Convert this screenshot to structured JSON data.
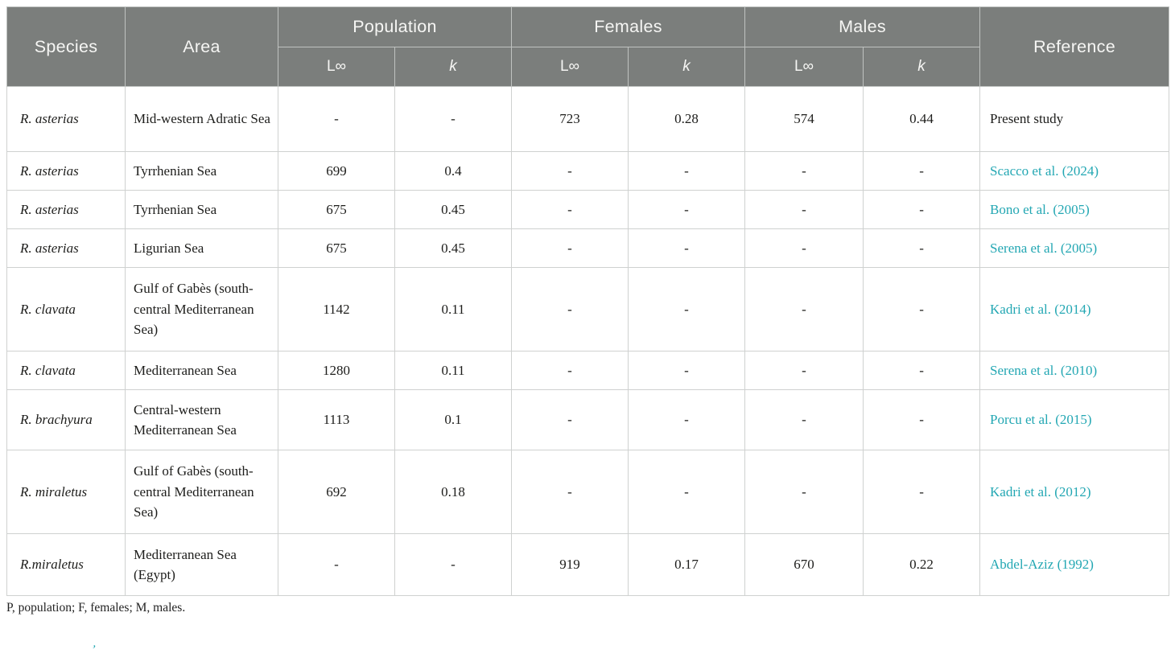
{
  "colors": {
    "header_bg": "#7b7e7c",
    "header_text": "#f6f6f4",
    "body_text": "#1d1d1b",
    "link_teal": "#23a7b3",
    "gridline": "#cfd1d0"
  },
  "table": {
    "column_groups": [
      {
        "label": "Species"
      },
      {
        "label": "Area"
      },
      {
        "label": "Population",
        "sub": [
          "L∞",
          "k"
        ]
      },
      {
        "label": "Females",
        "sub": [
          "L∞",
          "k"
        ]
      },
      {
        "label": "Males",
        "sub": [
          "L∞",
          "k"
        ]
      },
      {
        "label": "Reference"
      }
    ],
    "rows": [
      {
        "species": "R. asterias",
        "area": "Mid-western Adratic Sea",
        "p_linf": "-",
        "p_k": "-",
        "f_linf": "723",
        "f_k": "0.28",
        "m_linf": "574",
        "m_k": "0.44",
        "reference": "Present study",
        "reference_is_link": false
      },
      {
        "species": "R. asterias",
        "area": "Tyrrhenian Sea",
        "p_linf": "699",
        "p_k": "0.4",
        "f_linf": "-",
        "f_k": "-",
        "m_linf": "-",
        "m_k": "-",
        "reference": "Scacco et al. (2024)",
        "reference_is_link": true
      },
      {
        "species": "R. asterias",
        "area": "Tyrrhenian Sea",
        "p_linf": "675",
        "p_k": "0.45",
        "f_linf": "-",
        "f_k": "-",
        "m_linf": "-",
        "m_k": "-",
        "reference": "Bono et al. (2005)",
        "reference_is_link": true
      },
      {
        "species": "R. asterias",
        "area": "Ligurian Sea",
        "p_linf": "675",
        "p_k": "0.45",
        "f_linf": "-",
        "f_k": "-",
        "m_linf": "-",
        "m_k": "-",
        "reference": "Serena et al. (2005)",
        "reference_is_link": true
      },
      {
        "species": "R. clavata",
        "area": "Gulf of Gabès (south-central Mediterranean Sea)",
        "p_linf": "1142",
        "p_k": "0.11",
        "f_linf": "-",
        "f_k": "-",
        "m_linf": "-",
        "m_k": "-",
        "reference": "Kadri et al. (2014)",
        "reference_is_link": true
      },
      {
        "species": "R. clavata",
        "area": "Mediterranean Sea",
        "p_linf": "1280",
        "p_k": "0.11",
        "f_linf": "-",
        "f_k": "-",
        "m_linf": "-",
        "m_k": "-",
        "reference": "Serena et al. (2010)",
        "reference_is_link": true
      },
      {
        "species": "R. brachyura",
        "area": "Central-western Mediterranean Sea",
        "p_linf": "1113",
        "p_k": "0.1",
        "f_linf": "-",
        "f_k": "-",
        "m_linf": "-",
        "m_k": "-",
        "reference": "Porcu et al. (2015)",
        "reference_is_link": true
      },
      {
        "species": "R. miraletus",
        "area": "Gulf of Gabès (south-central Mediterranean Sea)",
        "p_linf": "692",
        "p_k": "0.18",
        "f_linf": "-",
        "f_k": "-",
        "m_linf": "-",
        "m_k": "-",
        "reference": "Kadri et al. (2012)",
        "reference_is_link": true
      },
      {
        "species": "R.miraletus",
        "area": "Mediterranean Sea (Egypt)",
        "p_linf": "-",
        "p_k": "-",
        "f_linf": "919",
        "f_k": "0.17",
        "m_linf": "670",
        "m_k": "0.22",
        "reference": "Abdel-Aziz (1992)",
        "reference_is_link": true
      }
    ],
    "footnote": "P, population; F, females; M, males.",
    "stray_mark": "’"
  }
}
